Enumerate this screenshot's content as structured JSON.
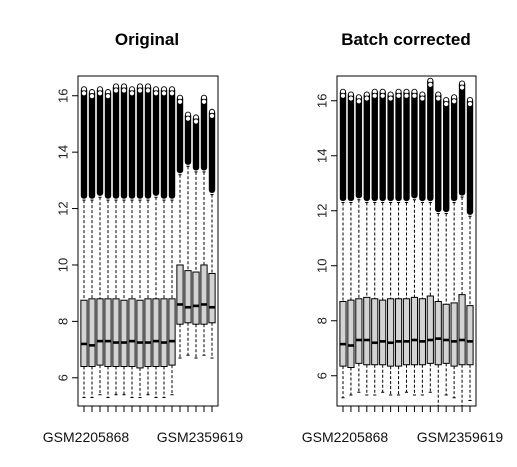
{
  "chart_data": [
    {
      "type": "box",
      "title": "Original",
      "xlabel": "",
      "ylabel": "",
      "ylim": [
        5.0,
        16.7
      ],
      "yticks": [
        6,
        8,
        10,
        12,
        14,
        16
      ],
      "x_tick_labels": [
        "GSM2205868",
        "GSM2359619"
      ],
      "x_tick_label_indices": [
        0,
        12
      ],
      "grid": false,
      "box_fill": "#d3d3d3",
      "boxes": [
        {
          "whisker_low": 5.3,
          "q1": 6.4,
          "median": 7.2,
          "q3": 8.75,
          "whisker_high": 12.3,
          "outlier_top": 16.3
        },
        {
          "whisker_low": 5.3,
          "q1": 6.4,
          "median": 7.15,
          "q3": 8.8,
          "whisker_high": 12.3,
          "outlier_top": 16.2
        },
        {
          "whisker_low": 5.4,
          "q1": 6.45,
          "median": 7.3,
          "q3": 8.8,
          "whisker_high": 12.4,
          "outlier_top": 16.3
        },
        {
          "whisker_low": 5.3,
          "q1": 6.4,
          "median": 7.3,
          "q3": 8.8,
          "whisker_high": 12.3,
          "outlier_top": 16.2
        },
        {
          "whisker_low": 5.4,
          "q1": 6.4,
          "median": 7.25,
          "q3": 8.8,
          "whisker_high": 12.3,
          "outlier_top": 16.4
        },
        {
          "whisker_low": 5.4,
          "q1": 6.4,
          "median": 7.25,
          "q3": 8.75,
          "whisker_high": 12.3,
          "outlier_top": 16.4
        },
        {
          "whisker_low": 5.3,
          "q1": 6.4,
          "median": 7.3,
          "q3": 8.8,
          "whisker_high": 12.3,
          "outlier_top": 16.3
        },
        {
          "whisker_low": 5.3,
          "q1": 6.35,
          "median": 7.25,
          "q3": 8.75,
          "whisker_high": 12.3,
          "outlier_top": 16.4
        },
        {
          "whisker_low": 5.4,
          "q1": 6.4,
          "median": 7.25,
          "q3": 8.8,
          "whisker_high": 12.3,
          "outlier_top": 16.4
        },
        {
          "whisker_low": 5.3,
          "q1": 6.4,
          "median": 7.3,
          "q3": 8.8,
          "whisker_high": 12.4,
          "outlier_top": 16.3
        },
        {
          "whisker_low": 5.3,
          "q1": 6.4,
          "median": 7.25,
          "q3": 8.8,
          "whisker_high": 12.3,
          "outlier_top": 16.3
        },
        {
          "whisker_low": 5.4,
          "q1": 6.45,
          "median": 7.3,
          "q3": 8.8,
          "whisker_high": 12.3,
          "outlier_top": 16.3
        },
        {
          "whisker_low": 6.7,
          "q1": 7.9,
          "median": 8.6,
          "q3": 10.0,
          "whisker_high": 13.2,
          "outlier_top": 16.0
        },
        {
          "whisker_low": 6.8,
          "q1": 7.95,
          "median": 8.5,
          "q3": 9.8,
          "whisker_high": 13.5,
          "outlier_top": 15.4
        },
        {
          "whisker_low": 6.7,
          "q1": 7.9,
          "median": 8.55,
          "q3": 9.75,
          "whisker_high": 13.3,
          "outlier_top": 15.3
        },
        {
          "whisker_low": 6.8,
          "q1": 7.9,
          "median": 8.6,
          "q3": 10.0,
          "whisker_high": 13.3,
          "outlier_top": 16.0
        },
        {
          "whisker_low": 6.7,
          "q1": 7.95,
          "median": 8.5,
          "q3": 9.7,
          "whisker_high": 12.5,
          "outlier_top": 15.5
        }
      ]
    },
    {
      "type": "box",
      "title": "Batch corrected",
      "xlabel": "",
      "ylabel": "",
      "ylim": [
        4.9,
        16.9
      ],
      "yticks": [
        6,
        8,
        10,
        12,
        14,
        16
      ],
      "x_tick_labels": [
        "GSM2205868",
        "GSM2359619"
      ],
      "x_tick_label_indices": [
        0,
        12
      ],
      "grid": false,
      "box_fill": "#d3d3d3",
      "boxes": [
        {
          "whisker_low": 5.2,
          "q1": 6.35,
          "median": 7.15,
          "q3": 8.7,
          "whisker_high": 12.3,
          "outlier_top": 16.4
        },
        {
          "whisker_low": 5.3,
          "q1": 6.3,
          "median": 7.1,
          "q3": 8.75,
          "whisker_high": 12.3,
          "outlier_top": 16.3
        },
        {
          "whisker_low": 5.4,
          "q1": 6.45,
          "median": 7.3,
          "q3": 8.8,
          "whisker_high": 12.4,
          "outlier_top": 16.2
        },
        {
          "whisker_low": 5.3,
          "q1": 6.4,
          "median": 7.3,
          "q3": 8.85,
          "whisker_high": 12.3,
          "outlier_top": 16.3
        },
        {
          "whisker_low": 5.3,
          "q1": 6.4,
          "median": 7.2,
          "q3": 8.8,
          "whisker_high": 12.3,
          "outlier_top": 16.4
        },
        {
          "whisker_low": 5.4,
          "q1": 6.4,
          "median": 7.25,
          "q3": 8.75,
          "whisker_high": 12.3,
          "outlier_top": 16.4
        },
        {
          "whisker_low": 5.3,
          "q1": 6.35,
          "median": 7.2,
          "q3": 8.8,
          "whisker_high": 12.3,
          "outlier_top": 16.3
        },
        {
          "whisker_low": 5.3,
          "q1": 6.35,
          "median": 7.25,
          "q3": 8.8,
          "whisker_high": 12.3,
          "outlier_top": 16.4
        },
        {
          "whisker_low": 5.4,
          "q1": 6.4,
          "median": 7.25,
          "q3": 8.8,
          "whisker_high": 12.3,
          "outlier_top": 16.4
        },
        {
          "whisker_low": 5.3,
          "q1": 6.4,
          "median": 7.3,
          "q3": 8.85,
          "whisker_high": 12.4,
          "outlier_top": 16.4
        },
        {
          "whisker_low": 5.3,
          "q1": 6.4,
          "median": 7.25,
          "q3": 8.8,
          "whisker_high": 12.3,
          "outlier_top": 16.3
        },
        {
          "whisker_low": 5.4,
          "q1": 6.45,
          "median": 7.3,
          "q3": 8.9,
          "whisker_high": 12.3,
          "outlier_top": 16.8
        },
        {
          "whisker_low": 4.9,
          "q1": 6.4,
          "median": 7.35,
          "q3": 8.7,
          "whisker_high": 11.9,
          "outlier_top": 16.3
        },
        {
          "whisker_low": 5.3,
          "q1": 6.45,
          "median": 7.3,
          "q3": 8.6,
          "whisker_high": 11.9,
          "outlier_top": 16.1
        },
        {
          "whisker_low": 5.2,
          "q1": 6.35,
          "median": 7.25,
          "q3": 8.65,
          "whisker_high": 12.3,
          "outlier_top": 16.2
        },
        {
          "whisker_low": 4.9,
          "q1": 6.4,
          "median": 7.3,
          "q3": 8.95,
          "whisker_high": 12.5,
          "outlier_top": 16.7
        },
        {
          "whisker_low": 5.1,
          "q1": 6.4,
          "median": 7.25,
          "q3": 8.55,
          "whisker_high": 11.8,
          "outlier_top": 16.1
        }
      ]
    }
  ]
}
